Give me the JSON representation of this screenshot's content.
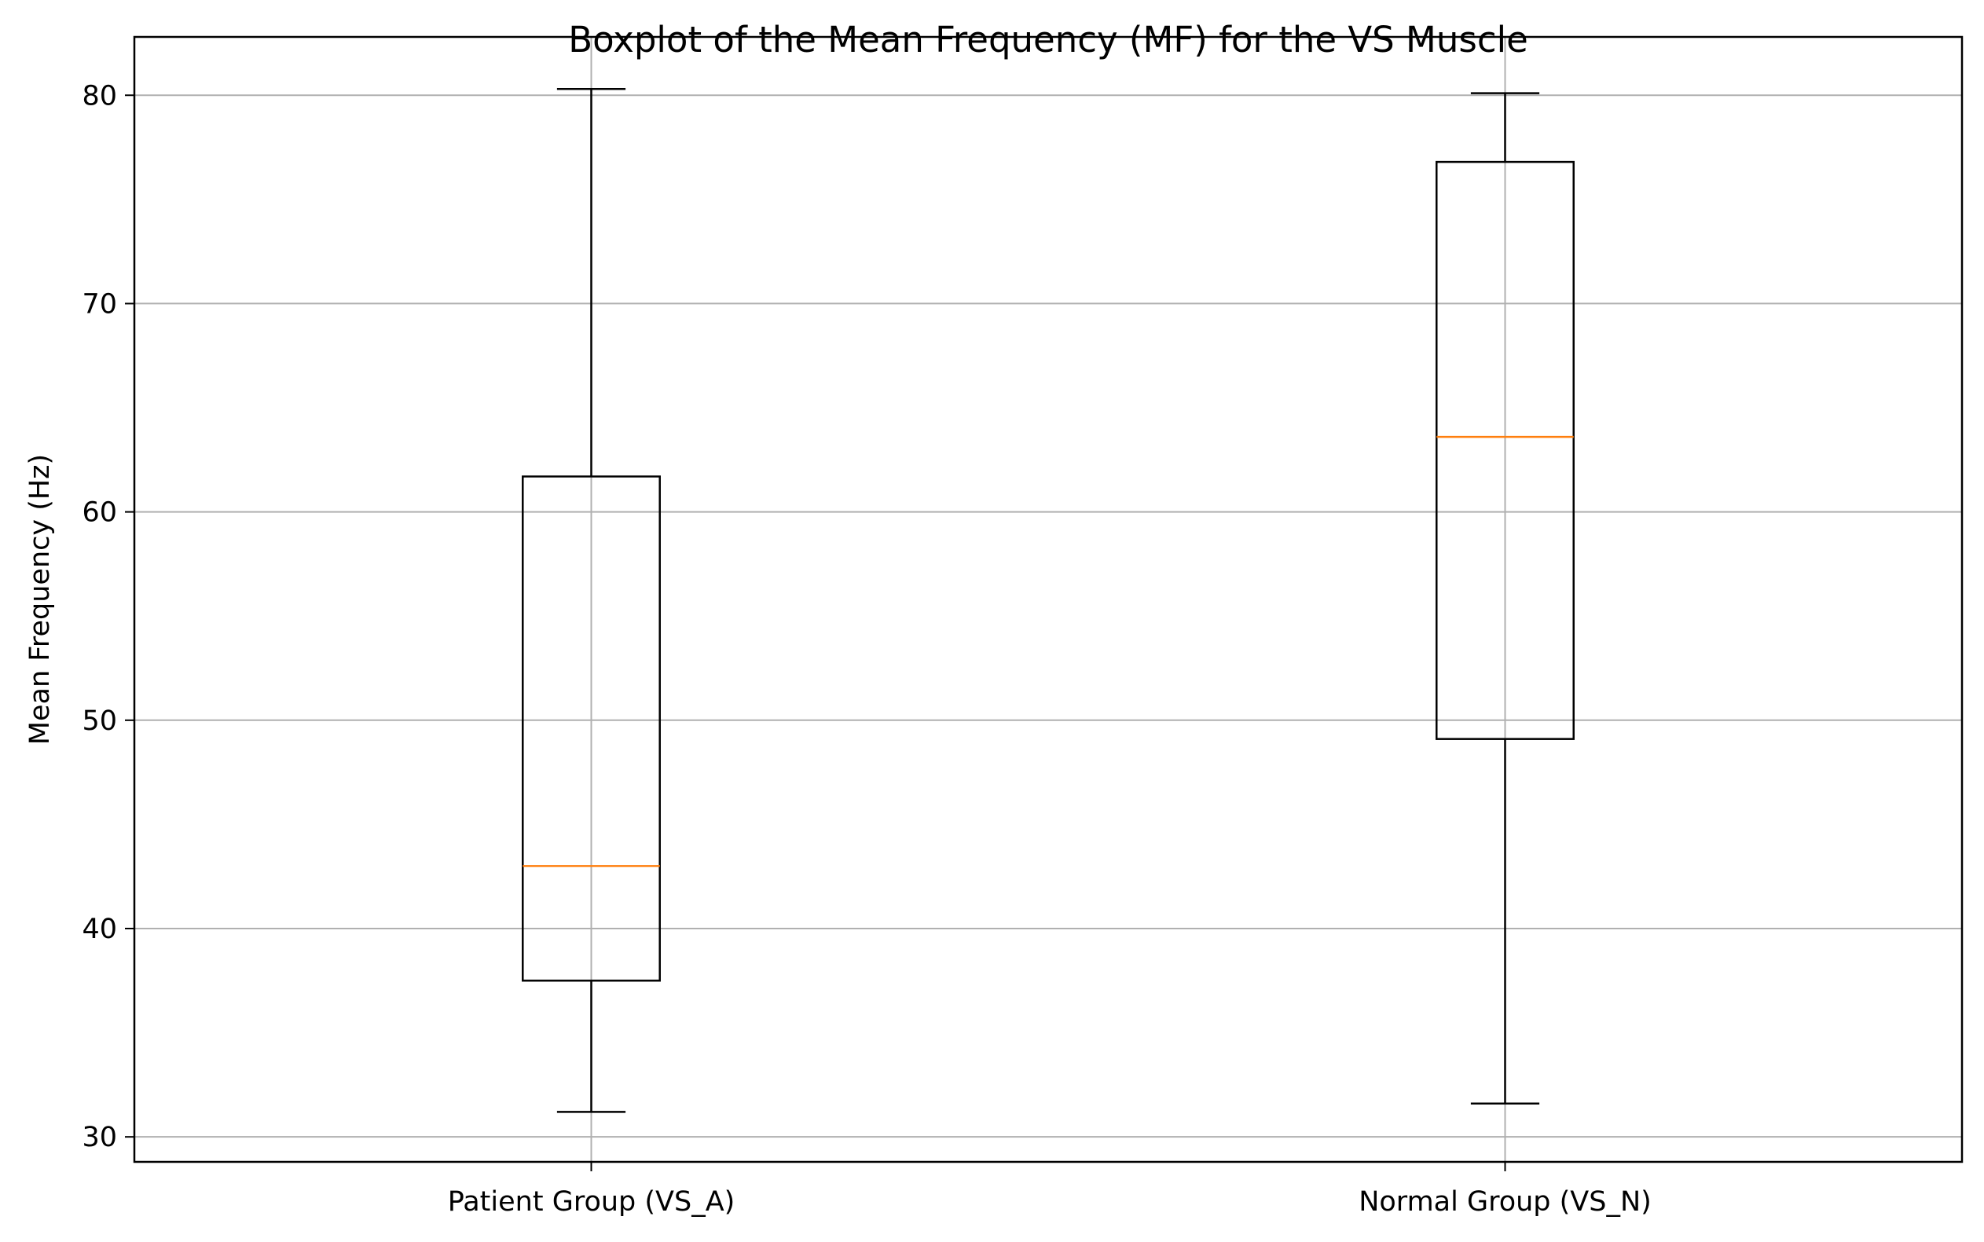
{
  "chart_data": {
    "type": "boxplot",
    "title": "Boxplot of the Mean Frequency (MF) for the VS Muscle",
    "xlabel": "",
    "ylabel": "Mean Frequency (Hz)",
    "ylim": [
      28.8,
      82.8
    ],
    "yticks": [
      30,
      40,
      50,
      60,
      70,
      80
    ],
    "categories": [
      "Patient Group (VS_A)",
      "Normal Group (VS_N)"
    ],
    "boxes": [
      {
        "category": "Patient Group (VS_A)",
        "whislo": 31.2,
        "q1": 37.5,
        "med": 43.0,
        "q3": 61.7,
        "whishi": 80.3
      },
      {
        "category": "Normal Group (VS_N)",
        "whislo": 31.6,
        "q1": 49.1,
        "med": 63.6,
        "q3": 76.8,
        "whishi": 80.1
      }
    ],
    "grid": true,
    "colors": {
      "box": "#000000",
      "median": "#ff7f0e",
      "grid": "#b0b0b0"
    }
  }
}
